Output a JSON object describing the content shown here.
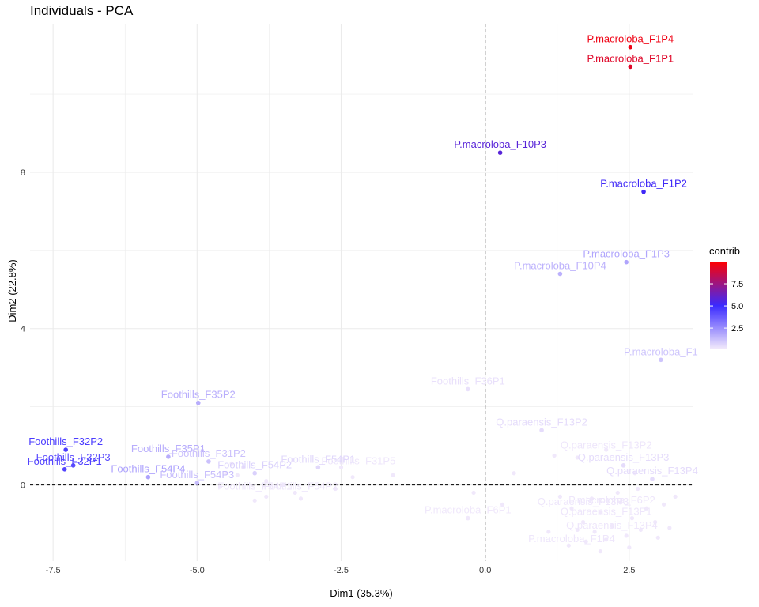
{
  "chart_data": {
    "type": "scatter",
    "title": "Individuals - PCA",
    "xlabel": "Dim1 (35.3%)",
    "ylabel": "Dim2 (22.8%)",
    "xlim": [
      -7.9,
      3.6
    ],
    "ylim": [
      -1.95,
      11.8
    ],
    "xticks": [
      -7.5,
      -5.0,
      -2.5,
      0.0,
      2.5
    ],
    "xtick_labels": [
      "-7.5",
      "-5.0",
      "-2.5",
      "0.0",
      "2.5"
    ],
    "yticks": [
      0,
      4,
      8
    ],
    "ytick_labels": [
      "0",
      "4",
      "8"
    ],
    "grid": true,
    "reference_lines": {
      "x": 0,
      "y": 0,
      "style": "dashed"
    },
    "legend": {
      "title": "contrib",
      "position": "right",
      "range": [
        0.1,
        10.0
      ],
      "ticks": [
        2.5,
        5.0,
        7.5
      ],
      "tick_labels": [
        "2.5",
        "5.0",
        "7.5"
      ],
      "colors": {
        "low": "#f4ecfb",
        "mid": "#3a2aff",
        "high": "#ff0000"
      }
    },
    "labeled_points": [
      {
        "label": "P.macroloba_F1P4",
        "x": 2.52,
        "y": 11.2,
        "contrib": 9.6
      },
      {
        "label": "P.macroloba_F1P1",
        "x": 2.52,
        "y": 10.7,
        "contrib": 9.2
      },
      {
        "label": "P.macroloba_F10P3",
        "x": 0.26,
        "y": 8.5,
        "contrib": 5.8
      },
      {
        "label": "P.macroloba_F1P2",
        "x": 2.75,
        "y": 7.5,
        "contrib": 5.2
      },
      {
        "label": "P.macroloba_F1P3",
        "x": 2.45,
        "y": 5.7,
        "contrib": 1.9
      },
      {
        "label": "P.macroloba_F10P4",
        "x": 1.3,
        "y": 5.4,
        "contrib": 1.6
      },
      {
        "label": "P.macroloba_F1",
        "x": 3.05,
        "y": 3.2,
        "contrib": 1.1
      },
      {
        "label": "Foothills_F36P1",
        "x": -0.3,
        "y": 2.45,
        "contrib": 0.4
      },
      {
        "label": "Foothills_F35P2",
        "x": -4.98,
        "y": 2.1,
        "contrib": 1.7
      },
      {
        "label": "Q.paraensis_F13P2",
        "x": 0.98,
        "y": 1.4,
        "contrib": 0.5
      },
      {
        "label": "Foothills_F32P2",
        "x": -7.28,
        "y": 0.9,
        "contrib": 4.6
      },
      {
        "label": "Foothills_F32P3",
        "x": -7.15,
        "y": 0.5,
        "contrib": 4.2
      },
      {
        "label": "Foothills_F32P1",
        "x": -7.3,
        "y": 0.4,
        "contrib": 4.4
      },
      {
        "label": "Foothills_F35P1",
        "x": -5.5,
        "y": 0.72,
        "contrib": 1.7
      },
      {
        "label": "Foothills_F31P2",
        "x": -4.8,
        "y": 0.6,
        "contrib": 1.2
      },
      {
        "label": "Foothills_F54P4",
        "x": -5.85,
        "y": 0.2,
        "contrib": 2.0
      },
      {
        "label": "Foothills_F54P3",
        "x": -5.0,
        "y": 0.05,
        "contrib": 1.3
      },
      {
        "label": "Foothills_F54P2",
        "x": -4.0,
        "y": 0.3,
        "contrib": 0.8
      },
      {
        "label": "Foothills_F54P1",
        "x": -2.9,
        "y": 0.45,
        "contrib": 0.6
      },
      {
        "label": "Q.paraensis_F13P3",
        "x": 2.4,
        "y": 0.5,
        "contrib": 0.5
      },
      {
        "label": "Q.paraensis_F13P4",
        "x": 2.9,
        "y": 0.15,
        "contrib": 0.5
      },
      {
        "label": "P.macroloba_F6P1",
        "x": -0.3,
        "y": -0.85,
        "contrib": 0.2
      }
    ],
    "unlabeled_points": [
      {
        "x": -4.4,
        "y": 0.55
      },
      {
        "x": -4.2,
        "y": 0.45
      },
      {
        "x": -4.5,
        "y": 0.3
      },
      {
        "x": -3.8,
        "y": 0.1
      },
      {
        "x": -3.5,
        "y": 0.0
      },
      {
        "x": -4.0,
        "y": -0.4
      },
      {
        "x": -3.8,
        "y": -0.3
      },
      {
        "x": -3.3,
        "y": -0.2
      },
      {
        "x": -3.2,
        "y": -0.35
      },
      {
        "x": -2.6,
        "y": -0.1
      },
      {
        "x": -2.3,
        "y": 0.2
      },
      {
        "x": -2.5,
        "y": 0.45
      },
      {
        "x": -4.6,
        "y": -0.05
      },
      {
        "x": -4.3,
        "y": 0.25
      },
      {
        "x": -1.6,
        "y": 0.25
      },
      {
        "x": -0.2,
        "y": -0.2
      },
      {
        "x": 0.5,
        "y": 0.3
      },
      {
        "x": 1.2,
        "y": 0.75
      },
      {
        "x": 1.6,
        "y": 0.7
      },
      {
        "x": 2.1,
        "y": 0.9
      },
      {
        "x": 2.6,
        "y": 0.3
      },
      {
        "x": 1.3,
        "y": -0.3
      },
      {
        "x": 1.5,
        "y": -0.6
      },
      {
        "x": 1.7,
        "y": -0.95
      },
      {
        "x": 1.9,
        "y": -1.2
      },
      {
        "x": 2.0,
        "y": -0.7
      },
      {
        "x": 2.2,
        "y": -1.05
      },
      {
        "x": 2.35,
        "y": -0.45
      },
      {
        "x": 2.45,
        "y": -1.3
      },
      {
        "x": 2.55,
        "y": -0.85
      },
      {
        "x": 2.7,
        "y": -1.15
      },
      {
        "x": 2.8,
        "y": -0.6
      },
      {
        "x": 2.95,
        "y": -0.95
      },
      {
        "x": 3.1,
        "y": -0.5
      },
      {
        "x": 3.2,
        "y": -1.1
      },
      {
        "x": 1.1,
        "y": -1.2
      },
      {
        "x": 1.45,
        "y": -1.55
      },
      {
        "x": 1.75,
        "y": -1.45
      },
      {
        "x": 2.1,
        "y": -1.4
      },
      {
        "x": 2.3,
        "y": -0.2
      },
      {
        "x": 2.65,
        "y": -0.1
      },
      {
        "x": 3.3,
        "y": -0.3
      },
      {
        "x": 1.85,
        "y": -0.35
      },
      {
        "x": 2.5,
        "y": -1.6
      },
      {
        "x": 2.0,
        "y": -1.7
      },
      {
        "x": 3.0,
        "y": -1.35
      },
      {
        "x": 1.6,
        "y": -1.15
      },
      {
        "x": 0.3,
        "y": -0.5
      }
    ],
    "overlap_labels": [
      {
        "label": "Foothills_F54P1",
        "x": -4.0,
        "y": -0.2
      },
      {
        "label": "Foothills_F54P2",
        "x": -3.2,
        "y": -0.2
      },
      {
        "label": "Foothills_F31P5",
        "x": -2.2,
        "y": 0.45
      },
      {
        "label": "Q.paraensis_F13P2",
        "x": 2.1,
        "y": 0.85
      },
      {
        "label": "P.macroloba_F6P2",
        "x": 2.2,
        "y": -0.55
      },
      {
        "label": "P.macroloba_F1P4",
        "x": 1.5,
        "y": -1.55
      },
      {
        "label": "Q.paraensis_F13P3",
        "x": 1.7,
        "y": -0.6
      },
      {
        "label": "Q.paraensis_F13P1",
        "x": 2.1,
        "y": -0.85
      },
      {
        "label": "Q.paraensis_F13P4",
        "x": 2.2,
        "y": -1.2
      }
    ]
  }
}
